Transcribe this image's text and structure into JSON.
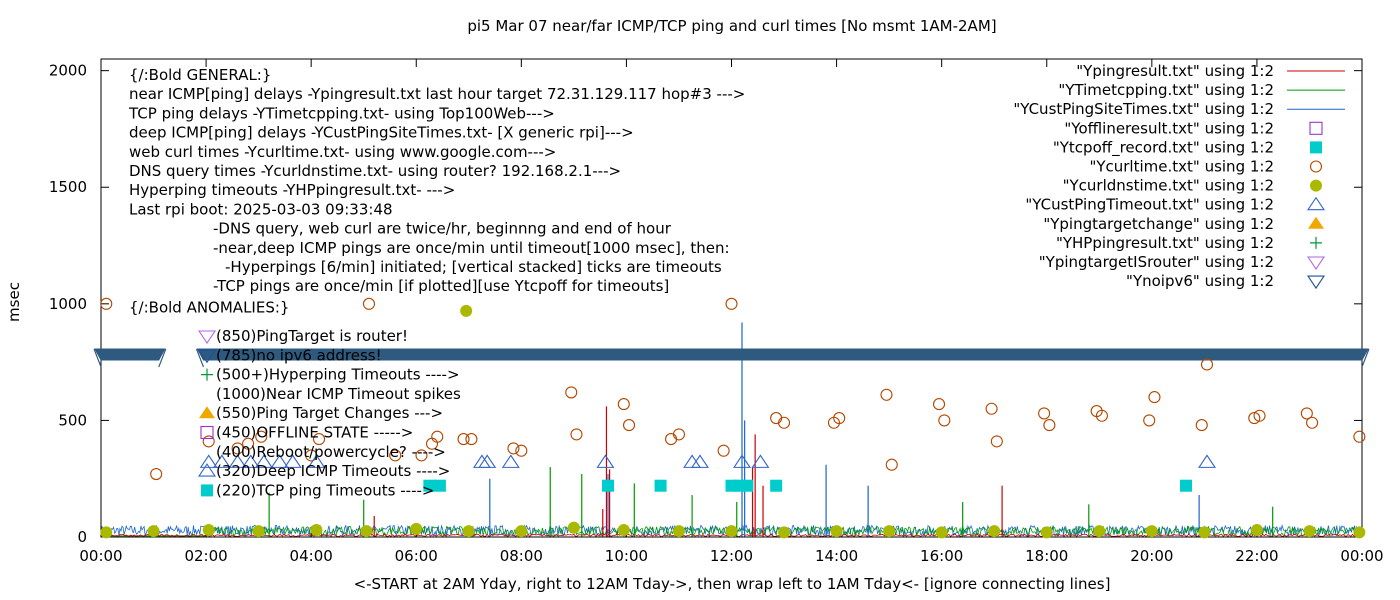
{
  "chart_data": {
    "type": "scatter",
    "title": "pi5 Mar 07  near/far ICMP/TCP ping and curl times [No msmt 1AM-2AM]",
    "xlabel": "<-START at 2AM Yday, right to 12AM Tday->, then wrap left to 1AM Tday<- [ignore connecting lines]",
    "ylabel": "msec",
    "xlim": [
      0,
      24
    ],
    "ylim": [
      0,
      2050
    ],
    "x_ticks": [
      "00:00",
      "02:00",
      "04:00",
      "06:00",
      "08:00",
      "10:00",
      "12:00",
      "14:00",
      "16:00",
      "18:00",
      "20:00",
      "22:00",
      "00:00"
    ],
    "y_ticks": [
      "0",
      "500",
      "1000",
      "1500",
      "2000"
    ],
    "y_tick_values": [
      0,
      500,
      1000,
      1500,
      2000
    ],
    "grid": false,
    "legend_placement": "top-right",
    "legend": [
      {
        "label": "\"Ypingresult.txt\" using 1:2",
        "symbol": "line",
        "color": "#cc0000"
      },
      {
        "label": "\"YTimetcpping.txt\" using 1:2",
        "symbol": "line",
        "color": "#009900"
      },
      {
        "label": "\"YCustPingSiteTimes.txt\" using 1:2",
        "symbol": "line",
        "color": "#1a66cc"
      },
      {
        "label": "\"Yofflineresult.txt\" using 1:2",
        "symbol": "open-square",
        "color": "#9933cc"
      },
      {
        "label": "\"Ytcpoff_record.txt\" using 1:2",
        "symbol": "filled-square",
        "color": "#00cccc"
      },
      {
        "label": "\"Ycurltime.txt\" using 1:2",
        "symbol": "open-circle",
        "color": "#b34700"
      },
      {
        "label": "\"Ycurldnstime.txt\" using 1:2",
        "symbol": "filled-circle",
        "color": "#aab800"
      },
      {
        "label": "\"YCustPingTimeout.txt\" using 1:2",
        "symbol": "open-triangle",
        "color": "#3366cc"
      },
      {
        "label": "\"Ypingtargetchange\" using 1:2",
        "symbol": "filled-triangle",
        "color": "#f0a800"
      },
      {
        "label": "\"YHPpingresult.txt\" using 1:2",
        "symbol": "plus",
        "color": "#009933"
      },
      {
        "label": "\"YpingtargetISrouter\" using 1:2",
        "symbol": "open-down-triangle",
        "color": "#b266e0"
      },
      {
        "label": "\"Ynoipv6\" using 1:2",
        "symbol": "open-down-triangle",
        "color": "#1f4f99"
      }
    ],
    "annotations": [
      "{/:Bold GENERAL:}",
      "near ICMP[ping] delays -Ypingresult.txt last hour target 72.31.129.117 hop#3 --->",
      "TCP ping delays -YTimetcpping.txt- using Top100Web--->",
      "deep ICMP[ping] delays -YCustPingSiteTimes.txt- [X generic rpi]--->",
      "web curl times -Ycurltime.txt- using www.google.com--->",
      "DNS query times -Ycurldnstime.txt- using router? 192.168.2.1--->",
      "Hyperping timeouts -YHPpingresult.txt- --->",
      "Last rpi boot: 2025-03-03 09:33:48",
      "-DNS query, web curl are twice/hr, beginnng and end of hour",
      "-near,deep ICMP pings are once/min until timeout[1000 msec], then:",
      "-Hyperpings [6/min] initiated; [vertical stacked] ticks are timeouts",
      "-TCP pings are once/min [if plotted][use Ytcpoff for timeouts]",
      "{/:Bold ANOMALIES:}"
    ],
    "anomaly_legend": [
      {
        "text": "(850)PingTarget is router!",
        "symbol": "open-down-triangle",
        "color": "#b266e0",
        "y": 850
      },
      {
        "text": "(785)no ipv6 address!",
        "symbol": "open-down-triangle",
        "color": "#1f4f99",
        "y": 785
      },
      {
        "text": "(500+)Hyperping Timeouts ---->",
        "symbol": "plus",
        "color": "#009933",
        "y": 700
      },
      {
        "text": "(1000)Near ICMP Timeout spikes",
        "symbol": "none",
        "color": "#000000",
        "y": 615
      },
      {
        "text": "(550)Ping Target Changes --->",
        "symbol": "filled-triangle",
        "color": "#f0a800",
        "y": 535
      },
      {
        "text": "(450)OFFLINE STATE ----->",
        "symbol": "open-square",
        "color": "#9933cc",
        "y": 450
      },
      {
        "text": "(400)Reboot/powercycle? ---->",
        "symbol": "none",
        "color": "#000000",
        "y": 370
      },
      {
        "text": "(320)Deep ICMP Timeouts ---->",
        "symbol": "open-triangle",
        "color": "#3366cc",
        "y": 290
      },
      {
        "text": "(220)TCP ping Timeouts ---->",
        "symbol": "filled-square",
        "color": "#00cccc",
        "y": 210
      }
    ],
    "series": [
      {
        "name": "\"Ycurltime.txt\" using 1:2",
        "style": "open-circle",
        "color": "#b34700",
        "points": [
          [
            0.1,
            1000
          ],
          [
            1.05,
            270
          ],
          [
            2.05,
            410
          ],
          [
            2.6,
            380
          ],
          [
            2.8,
            400
          ],
          [
            3.05,
            430
          ],
          [
            4.0,
            350
          ],
          [
            4.15,
            420
          ],
          [
            5.1,
            1000
          ],
          [
            5.6,
            350
          ],
          [
            6.1,
            350
          ],
          [
            6.3,
            400
          ],
          [
            6.4,
            430
          ],
          [
            6.9,
            420
          ],
          [
            7.05,
            420
          ],
          [
            7.85,
            380
          ],
          [
            8.0,
            370
          ],
          [
            8.95,
            620
          ],
          [
            9.05,
            440
          ],
          [
            9.95,
            570
          ],
          [
            10.05,
            480
          ],
          [
            10.85,
            420
          ],
          [
            11.0,
            440
          ],
          [
            11.85,
            370
          ],
          [
            12.0,
            1000
          ],
          [
            12.85,
            510
          ],
          [
            13.0,
            490
          ],
          [
            13.95,
            490
          ],
          [
            14.05,
            510
          ],
          [
            14.95,
            610
          ],
          [
            15.05,
            310
          ],
          [
            15.95,
            570
          ],
          [
            16.05,
            500
          ],
          [
            16.95,
            550
          ],
          [
            17.05,
            410
          ],
          [
            17.95,
            530
          ],
          [
            18.05,
            480
          ],
          [
            18.95,
            540
          ],
          [
            19.05,
            520
          ],
          [
            19.95,
            500
          ],
          [
            20.05,
            600
          ],
          [
            20.95,
            480
          ],
          [
            21.05,
            740
          ],
          [
            21.95,
            510
          ],
          [
            22.05,
            520
          ],
          [
            22.95,
            530
          ],
          [
            23.05,
            490
          ],
          [
            23.95,
            430
          ]
        ]
      },
      {
        "name": "\"Ycurldnstime.txt\" using 1:2",
        "style": "filled-circle",
        "color": "#aab800",
        "points": [
          [
            0.1,
            20
          ],
          [
            1.0,
            25
          ],
          [
            2.05,
            30
          ],
          [
            3.0,
            25
          ],
          [
            4.1,
            30
          ],
          [
            5.05,
            25
          ],
          [
            6.0,
            35
          ],
          [
            6.95,
            970
          ],
          [
            7.0,
            25
          ],
          [
            8.0,
            25
          ],
          [
            9.0,
            40
          ],
          [
            9.95,
            30
          ],
          [
            11.0,
            25
          ],
          [
            12.0,
            25
          ],
          [
            13.0,
            20
          ],
          [
            14.0,
            25
          ],
          [
            15.0,
            25
          ],
          [
            16.0,
            20
          ],
          [
            17.0,
            25
          ],
          [
            18.0,
            20
          ],
          [
            19.0,
            25
          ],
          [
            20.0,
            25
          ],
          [
            21.0,
            20
          ],
          [
            22.0,
            30
          ],
          [
            23.0,
            25
          ],
          [
            23.95,
            20
          ]
        ]
      },
      {
        "name": "\"YCustPingTimeout.txt\" using 1:2",
        "style": "open-triangle",
        "color": "#3366cc",
        "points": [
          [
            2.05,
            320
          ],
          [
            2.3,
            320
          ],
          [
            2.6,
            320
          ],
          [
            2.85,
            320
          ],
          [
            3.1,
            320
          ],
          [
            3.4,
            320
          ],
          [
            3.65,
            320
          ],
          [
            4.1,
            320
          ],
          [
            7.25,
            320
          ],
          [
            7.35,
            320
          ],
          [
            7.8,
            320
          ],
          [
            9.6,
            320
          ],
          [
            11.25,
            320
          ],
          [
            11.4,
            320
          ],
          [
            12.2,
            320
          ],
          [
            12.55,
            320
          ],
          [
            21.05,
            320
          ]
        ]
      },
      {
        "name": "\"Ytcpoff_record.txt\" using 1:2",
        "style": "filled-square",
        "color": "#00cccc",
        "points": [
          [
            6.25,
            220
          ],
          [
            6.45,
            220
          ],
          [
            9.65,
            220
          ],
          [
            10.65,
            220
          ],
          [
            12.0,
            220
          ],
          [
            12.15,
            220
          ],
          [
            12.3,
            220
          ],
          [
            12.85,
            220
          ],
          [
            20.65,
            220
          ]
        ]
      },
      {
        "name": "\"Ynoipv6\" using 1:2",
        "style": "open-down-triangle-band",
        "color": "#2e5a80",
        "points": [],
        "band_y": 785,
        "band_ranges": [
          [
            0,
            1.1
          ],
          [
            1.95,
            24
          ]
        ]
      },
      {
        "name": "\"Ypingresult.txt\" using 1:2",
        "style": "impulse-spikes",
        "color": "#cc0000",
        "points": [
          [
            9.55,
            120
          ],
          [
            9.62,
            560
          ],
          [
            9.68,
            290
          ],
          [
            12.4,
            300
          ],
          [
            12.45,
            440
          ],
          [
            17.15,
            220
          ],
          [
            12.6,
            220
          ],
          [
            5.2,
            90
          ]
        ]
      },
      {
        "name": "\"YCustPingSiteTimes.txt\" using 1:2",
        "style": "impulse-spikes",
        "color": "#1a66cc",
        "points": [
          [
            12.2,
            920
          ],
          [
            12.25,
            500
          ],
          [
            13.8,
            310
          ],
          [
            9.65,
            270
          ],
          [
            7.4,
            250
          ],
          [
            14.6,
            220
          ],
          [
            20.9,
            180
          ]
        ]
      },
      {
        "name": "\"YTimetcpping.txt\" using 1:2",
        "style": "impulse-spikes",
        "color": "#009900",
        "points": [
          [
            3.2,
            190
          ],
          [
            8.55,
            300
          ],
          [
            9.15,
            270
          ],
          [
            10.15,
            230
          ],
          [
            11.25,
            180
          ],
          [
            12.1,
            150
          ],
          [
            5.0,
            160
          ],
          [
            16.4,
            150
          ],
          [
            18.8,
            140
          ],
          [
            22.3,
            130
          ]
        ]
      }
    ]
  }
}
